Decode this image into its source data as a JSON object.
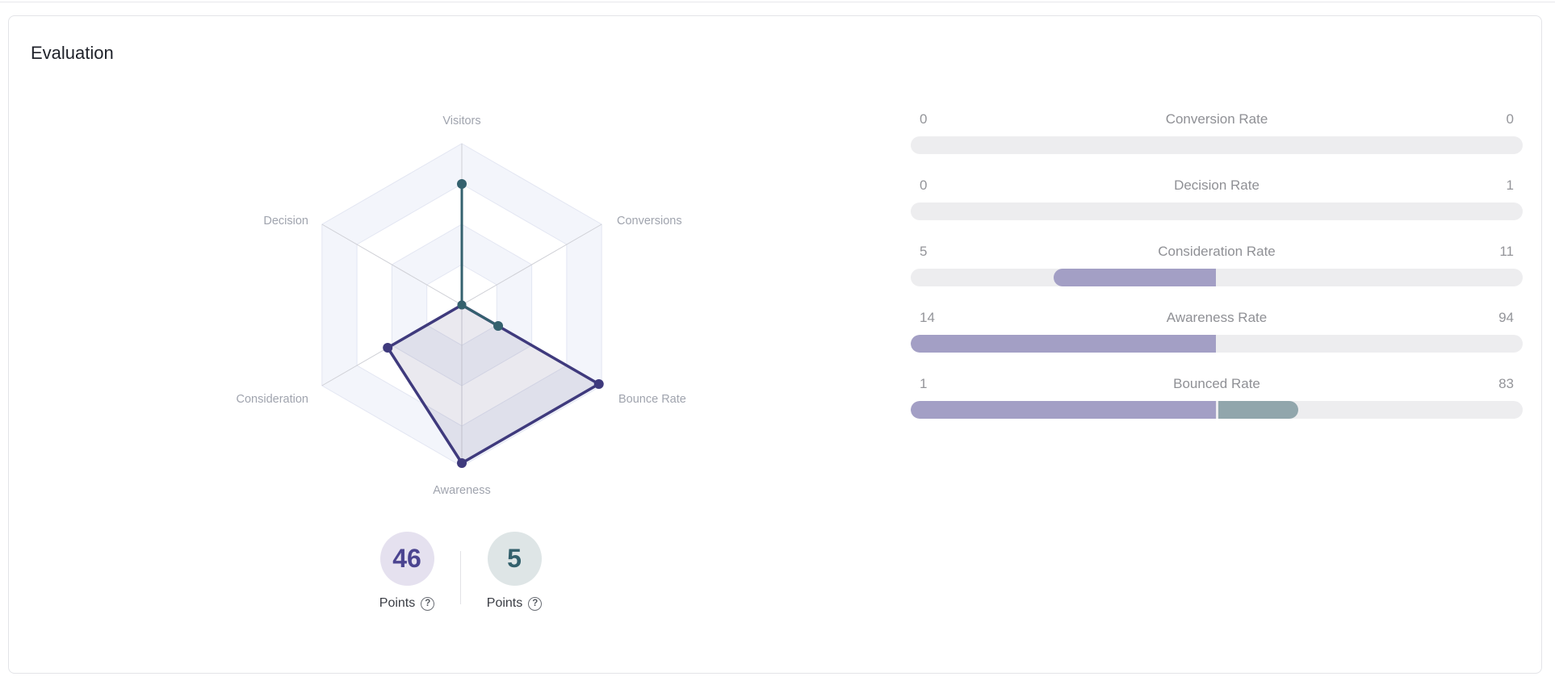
{
  "page": {
    "title": "Evaluation"
  },
  "colors": {
    "card_border": "#e3e4e8",
    "bar_track": "#ededef",
    "bar_purple": "#a39fc5",
    "bar_teal": "#91a6ac",
    "radar_teal": "#34616e",
    "radar_purple": "#3f3a7d",
    "radar_fill": "rgba(90,85,135,0.13)",
    "ring_band": "#f3f5fb",
    "ring_stroke": "#e3e6f2",
    "axis_line": "#cfd0d6"
  },
  "chart_data": [
    {
      "type": "radar",
      "title": "Evaluation",
      "axes": [
        "Visitors",
        "Conversions",
        "Bounce Rate",
        "Awareness",
        "Consideration",
        "Decision"
      ],
      "rings": 4,
      "band_fills": [
        "#f3f5fb",
        "#ffffff",
        "#f3f5fb",
        "#ffffff"
      ],
      "series": [
        {
          "name": "purple-series",
          "color": "#3f3a7d",
          "fill": "rgba(90,85,135,0.13)",
          "values_pct": [
            0,
            0,
            98,
            98,
            53,
            0
          ]
        },
        {
          "name": "teal-series",
          "color": "#34616e",
          "fill": "none",
          "values_pct": [
            75,
            0,
            26,
            0,
            0,
            0
          ]
        }
      ]
    },
    {
      "type": "bar",
      "rows": [
        {
          "left_value": "0",
          "label": "Conversion Rate",
          "right_value": "0",
          "segments": []
        },
        {
          "left_value": "0",
          "label": "Decision Rate",
          "right_value": "1",
          "segments": []
        },
        {
          "left_value": "5",
          "label": "Consideration Rate",
          "right_value": "11",
          "segments": [
            {
              "start_pct": 23.4,
              "width_pct": 26.5,
              "color": "#a39fc5",
              "cap": "left"
            }
          ]
        },
        {
          "left_value": "14",
          "label": "Awareness Rate",
          "right_value": "94",
          "segments": [
            {
              "start_pct": 0,
              "width_pct": 49.9,
              "color": "#a39fc5",
              "cap": "left"
            }
          ]
        },
        {
          "left_value": "1",
          "label": "Bounced Rate",
          "right_value": "83",
          "segments": [
            {
              "start_pct": 0,
              "width_pct": 49.9,
              "color": "#a39fc5",
              "cap": "left"
            },
            {
              "start_pct": 50.3,
              "width_pct": 13.0,
              "color": "#91a6ac",
              "cap": "right"
            }
          ]
        }
      ]
    }
  ],
  "points_badges": [
    {
      "value": "46",
      "label": "Points",
      "help_icon": "?",
      "bg": "#e5e1ef",
      "text_color": "#4b4490"
    },
    {
      "value": "5",
      "label": "Points",
      "help_icon": "?",
      "bg": "#dee5e6",
      "text_color": "#33606c"
    }
  ]
}
